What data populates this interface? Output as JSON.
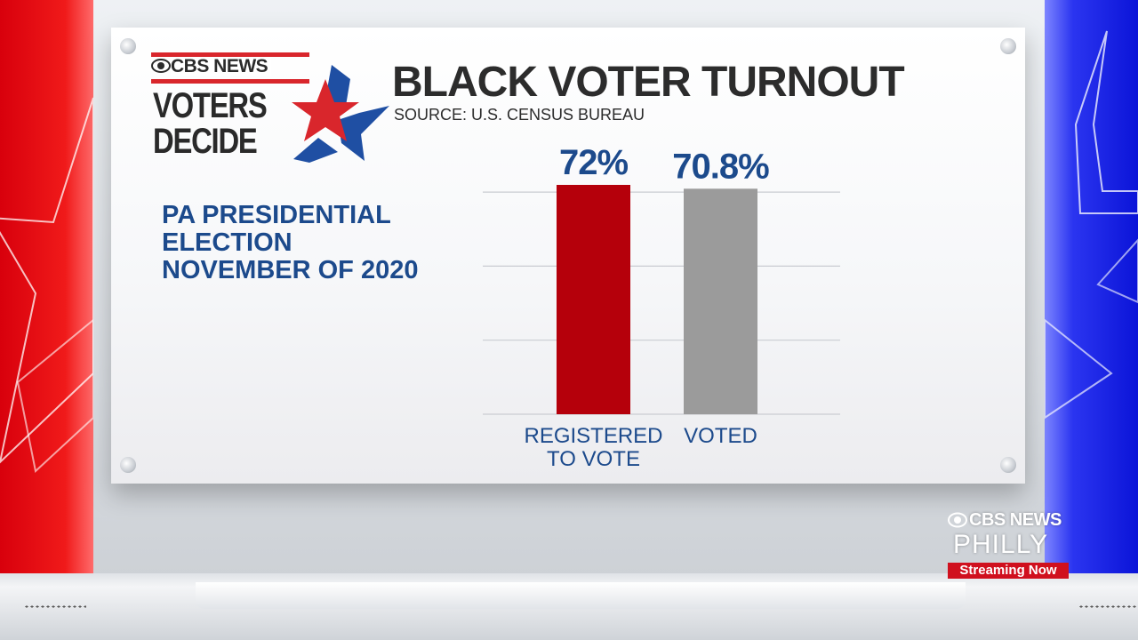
{
  "header": {
    "logo_network": "CBS NEWS",
    "logo_line1": "VOTERS",
    "logo_line2": "DECIDE",
    "title": "BLACK VOTER TURNOUT",
    "source": "SOURCE: U.S. CENSUS BUREAU"
  },
  "subtitle": {
    "line1": "PA PRESIDENTIAL",
    "line2": "ELECTION",
    "line3": "NOVEMBER OF 2020"
  },
  "chart_data": {
    "type": "bar",
    "title": "BLACK VOTER TURNOUT",
    "categories": [
      "REGISTERED TO VOTE",
      "VOTED"
    ],
    "category_label_lines": [
      [
        "REGISTERED",
        "TO VOTE"
      ],
      [
        "VOTED"
      ]
    ],
    "values": [
      72,
      70.8
    ],
    "value_labels": [
      "72%",
      "70.8%"
    ],
    "ylim": [
      0,
      72
    ],
    "grid": true,
    "legend": "none",
    "colors": [
      "#b5000b",
      "#9b9b9b"
    ]
  },
  "watermark": {
    "network": "CBS NEWS",
    "station": "PHILLY",
    "badge": "Streaming Now"
  },
  "colors": {
    "accent_blue": "#1c4a8c",
    "red_side": "#e00010",
    "blue_side": "#1a22e8"
  }
}
